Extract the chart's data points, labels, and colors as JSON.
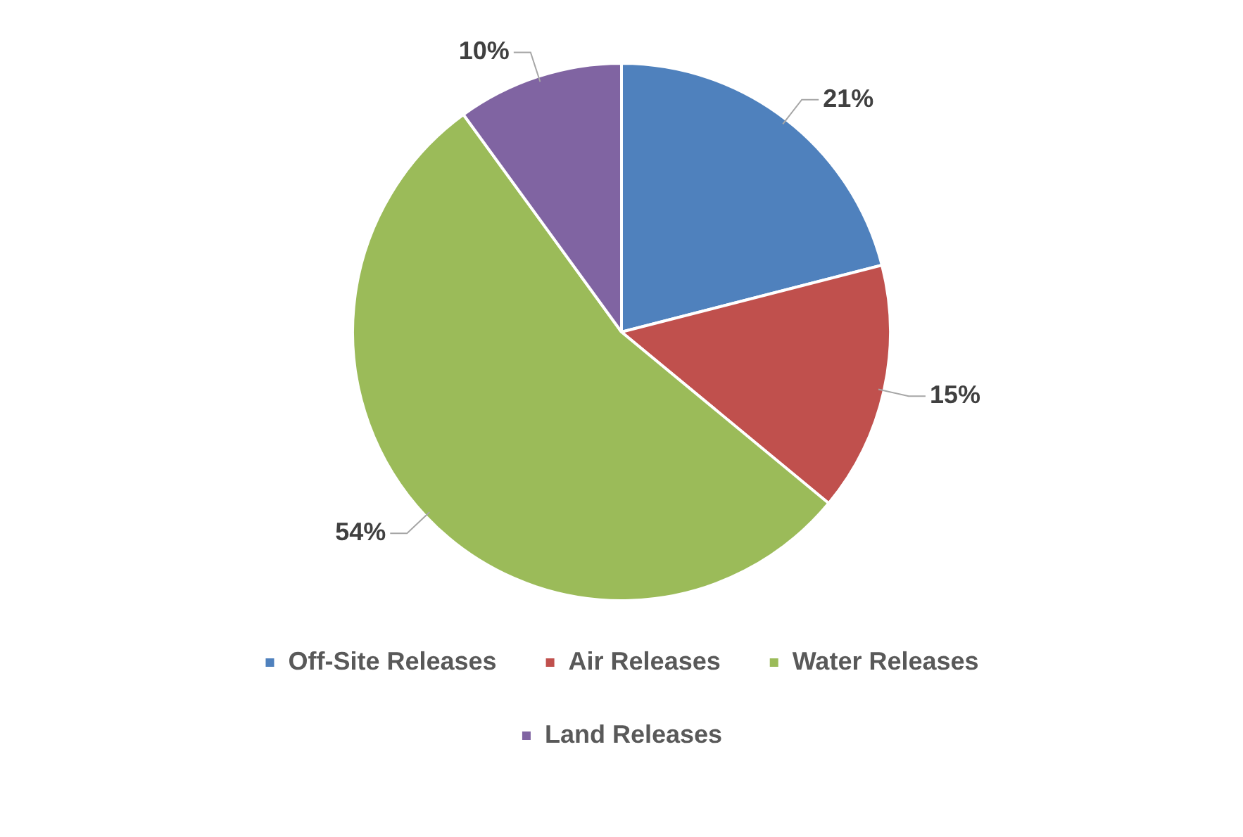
{
  "chart_data": {
    "type": "pie",
    "categories": [
      "Off-Site Releases",
      "Air Releases",
      "Water Releases",
      "Land Releases"
    ],
    "values": [
      21,
      15,
      54,
      10
    ],
    "colors": [
      "#4f81bd",
      "#c0504d",
      "#9bbb59",
      "#8064a2"
    ],
    "value_labels": [
      "21%",
      "15%",
      "54%",
      "10%"
    ],
    "legend": "bottom"
  }
}
